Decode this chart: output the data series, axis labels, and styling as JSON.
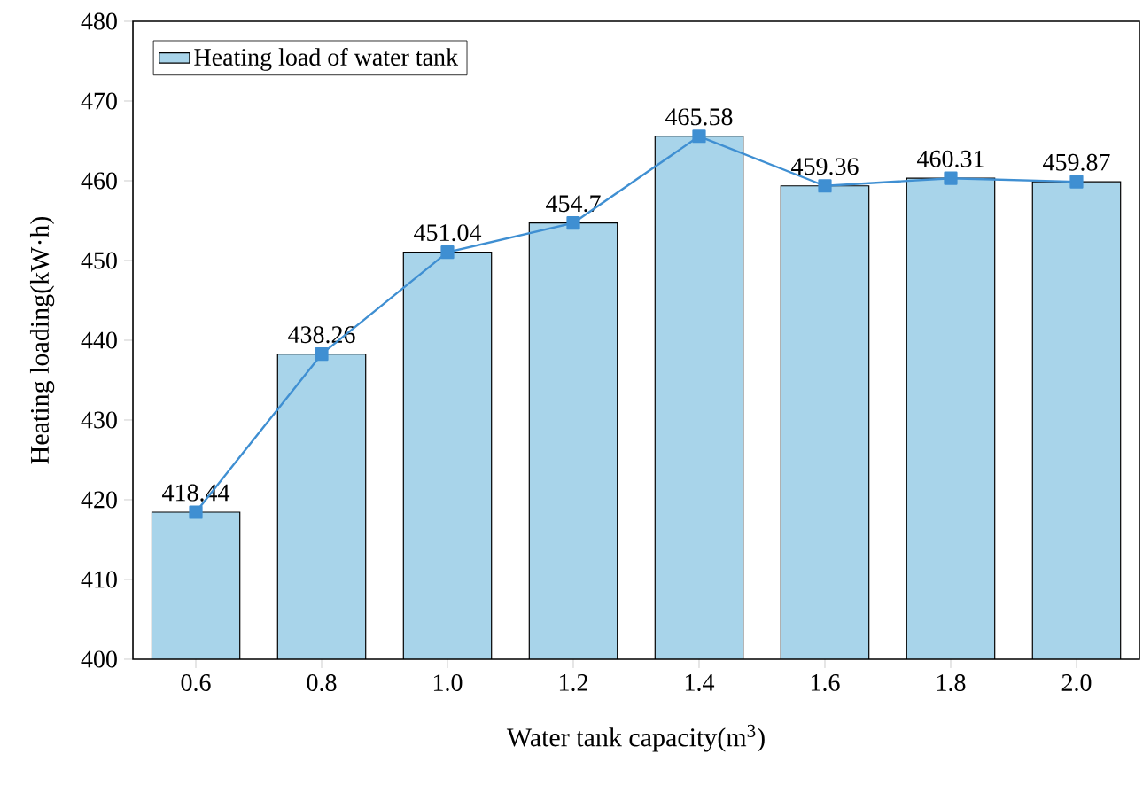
{
  "chart_data": {
    "type": "bar",
    "xlabel": "Water tank capacity(m$^{3}$)",
    "ylabel": "Heating loading(kW·h)",
    "categories": [
      "0.6",
      "0.8",
      "1.0",
      "1.2",
      "1.4",
      "1.6",
      "1.8",
      "2.0"
    ],
    "series": [
      {
        "name": "Heating load of water tank",
        "color": "#a8d4ea",
        "values": [
          418.44,
          438.26,
          451.04,
          454.7,
          465.58,
          459.36,
          460.31,
          459.87
        ],
        "value_labels": [
          "418.44",
          "438.26",
          "451.04",
          "454.7",
          "465.58",
          "459.36",
          "460.31",
          "459.87"
        ]
      },
      {
        "type": "line",
        "color": "#3f8fd2",
        "marker": "square",
        "values": [
          418.44,
          438.26,
          451.04,
          454.7,
          465.58,
          459.36,
          460.31,
          459.87
        ]
      }
    ],
    "ylim": [
      400,
      480
    ],
    "yticks": [
      400,
      410,
      420,
      430,
      440,
      450,
      460,
      470,
      480
    ],
    "legend": "top left",
    "grid": false
  }
}
